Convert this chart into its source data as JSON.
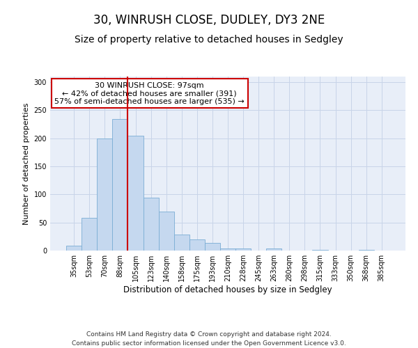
{
  "title1": "30, WINRUSH CLOSE, DUDLEY, DY3 2NE",
  "title2": "Size of property relative to detached houses in Sedgley",
  "xlabel": "Distribution of detached houses by size in Sedgley",
  "ylabel": "Number of detached properties",
  "categories": [
    "35sqm",
    "53sqm",
    "70sqm",
    "88sqm",
    "105sqm",
    "123sqm",
    "140sqm",
    "158sqm",
    "175sqm",
    "193sqm",
    "210sqm",
    "228sqm",
    "245sqm",
    "263sqm",
    "280sqm",
    "298sqm",
    "315sqm",
    "333sqm",
    "350sqm",
    "368sqm",
    "385sqm"
  ],
  "values": [
    9,
    58,
    200,
    234,
    205,
    94,
    70,
    29,
    20,
    14,
    4,
    4,
    0,
    4,
    0,
    0,
    1,
    0,
    0,
    1,
    0
  ],
  "bar_color": "#c5d8ef",
  "bar_edge_color": "#7aadd4",
  "vline_x_index": 3.5,
  "vline_color": "#cc0000",
  "annotation_text": "30 WINRUSH CLOSE: 97sqm\n← 42% of detached houses are smaller (391)\n57% of semi-detached houses are larger (535) →",
  "annotation_box_color": "#ffffff",
  "annotation_box_edge_color": "#cc0000",
  "ylim": [
    0,
    310
  ],
  "yticks": [
    0,
    50,
    100,
    150,
    200,
    250,
    300
  ],
  "grid_color": "#c8d4e8",
  "background_color": "#e8eef8",
  "footer_text": "Contains HM Land Registry data © Crown copyright and database right 2024.\nContains public sector information licensed under the Open Government Licence v3.0.",
  "title1_fontsize": 12,
  "title2_fontsize": 10,
  "xlabel_fontsize": 8.5,
  "ylabel_fontsize": 8,
  "tick_fontsize": 7,
  "annotation_fontsize": 8,
  "footer_fontsize": 6.5
}
